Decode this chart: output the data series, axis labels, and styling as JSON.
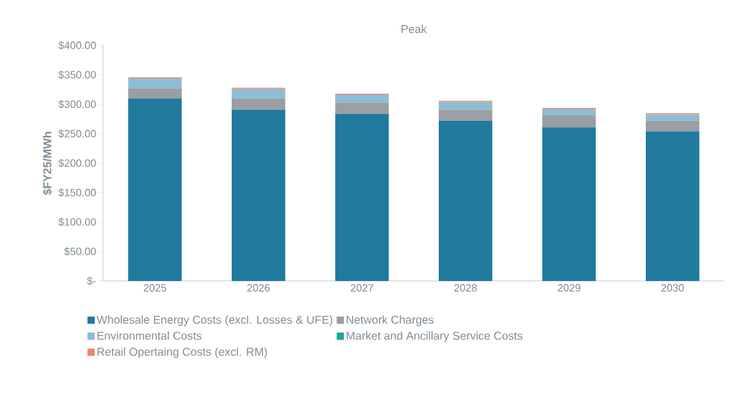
{
  "chart_data": {
    "type": "bar",
    "stacked": true,
    "title": "Peak",
    "ylabel": "$FY25/MWh",
    "categories": [
      "2025",
      "2026",
      "2027",
      "2028",
      "2029",
      "2030"
    ],
    "series": [
      {
        "name": "Wholesale Energy Costs (excl. Losses & UFE)",
        "color": "#1f7a9e",
        "values": [
          310,
          291,
          284,
          272,
          261,
          254
        ]
      },
      {
        "name": "Network Charges",
        "color": "#9b9ea3",
        "values": [
          17,
          18,
          19,
          19,
          20,
          18
        ]
      },
      {
        "name": "Environmental Costs",
        "color": "#8dbdd4",
        "values": [
          17,
          17,
          13,
          13,
          11,
          11
        ]
      },
      {
        "name": "Market and Ancillary Service Costs",
        "color": "#1aa898",
        "values": [
          0,
          0,
          0,
          0,
          0,
          0
        ]
      },
      {
        "name": "Retail Opertaing Costs (excl. RM)",
        "color": "#e8896a",
        "values": [
          2,
          2,
          2,
          2,
          2,
          2
        ]
      }
    ],
    "ylim": [
      0,
      400
    ],
    "yticks": [
      {
        "value": 0,
        "label": "$-"
      },
      {
        "value": 50,
        "label": "$50.00"
      },
      {
        "value": 100,
        "label": "$100.00"
      },
      {
        "value": 150,
        "label": "$150.00"
      },
      {
        "value": 200,
        "label": "$200.00"
      },
      {
        "value": 250,
        "label": "$250.00"
      },
      {
        "value": 300,
        "label": "$300.00"
      },
      {
        "value": 350,
        "label": "$350.00"
      },
      {
        "value": 400,
        "label": "$400.00"
      }
    ],
    "grid": false,
    "legend": "bottom"
  }
}
